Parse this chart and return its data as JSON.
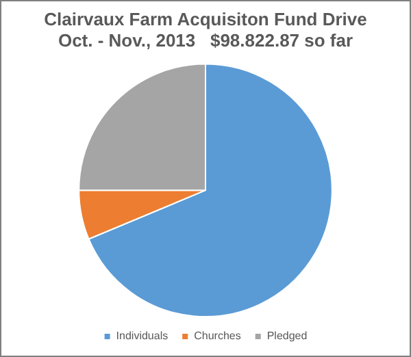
{
  "chart_data": {
    "type": "pie",
    "title": [
      "Clairvaux Farm Acquisiton Fund Drive",
      "Oct. - Nov., 2013   $98.822.87 so far"
    ],
    "categories": [
      "Individuals",
      "Churches",
      "Pledged"
    ],
    "values": [
      68.7,
      6.3,
      25
    ],
    "colors": [
      "#5b9bd5",
      "#ed7d31",
      "#a5a5a5"
    ],
    "legend": "bottom"
  }
}
